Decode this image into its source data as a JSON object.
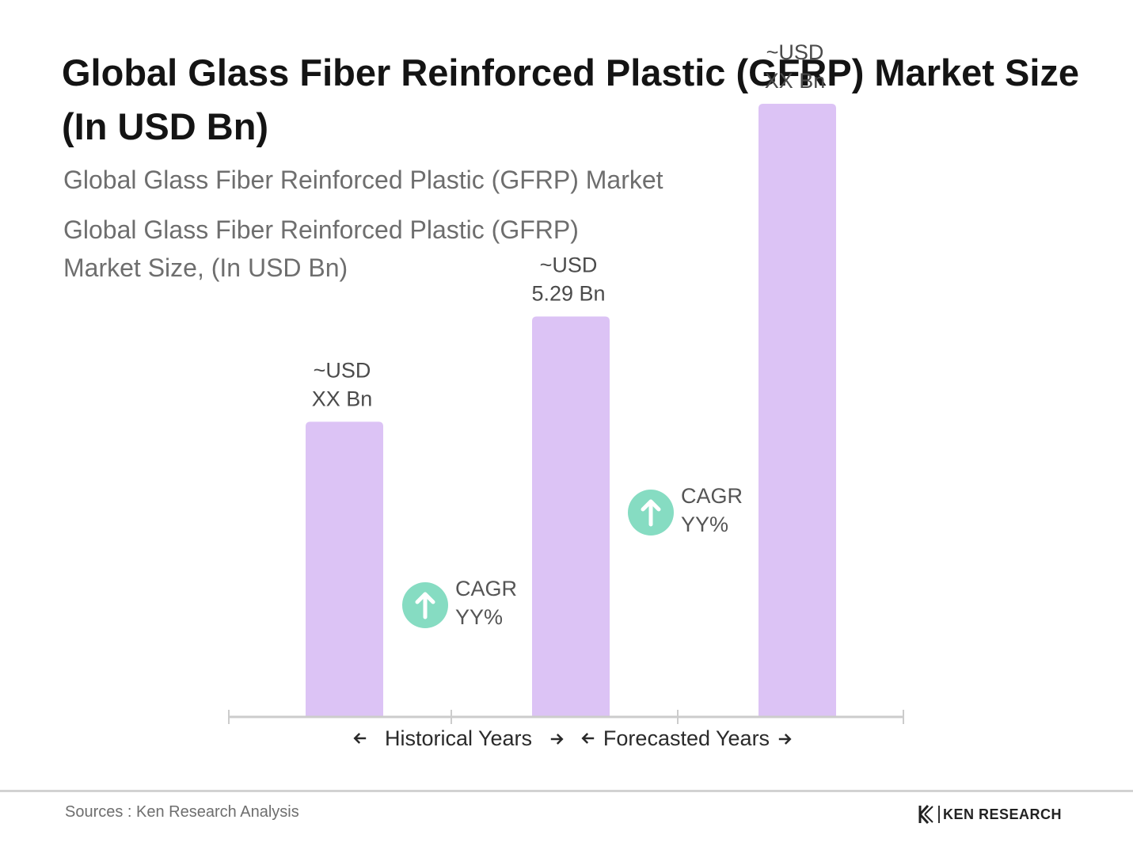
{
  "title": "Global Glass Fiber Reinforced Plastic (GFRP) Market Size (In USD Bn)",
  "subtitle": "Global Glass Fiber Reinforced Plastic (GFRP) Market",
  "chart_subtitle": "Global Glass Fiber Reinforced Plastic (GFRP) Market Size, (In USD Bn)",
  "source": "Sources : Ken Research Analysis",
  "brand": "KEN RESEARCH",
  "colors": {
    "bar": "#dcc3f5",
    "cagr_icon": "#86dcc2",
    "axis": "#cccccc"
  },
  "icons": [
    "up-arrow-icon",
    "left-arrow-icon",
    "right-arrow-icon",
    "ken-research-logo"
  ],
  "chart_data": {
    "type": "bar",
    "categories": [
      "",
      "",
      ""
    ],
    "values": [
      3.9,
      5.29,
      8.1
    ],
    "data_labels": [
      [
        "~USD",
        "XX Bn"
      ],
      [
        "~USD",
        "5.29 Bn"
      ],
      [
        "~USD",
        "XX Bn"
      ]
    ],
    "cagr_annotations": [
      {
        "between": [
          0,
          1
        ],
        "lines": [
          "CAGR",
          "YY%"
        ]
      },
      {
        "between": [
          1,
          2
        ],
        "lines": [
          "CAGR",
          "YY%"
        ]
      }
    ],
    "period_labels": [
      "Historical Years",
      "Forecasted Years"
    ],
    "ylim": [
      0,
      9
    ],
    "grid": false,
    "legend": "none",
    "title": "Global Glass Fiber Reinforced Plastic (GFRP) Market Size, (In USD Bn)"
  }
}
